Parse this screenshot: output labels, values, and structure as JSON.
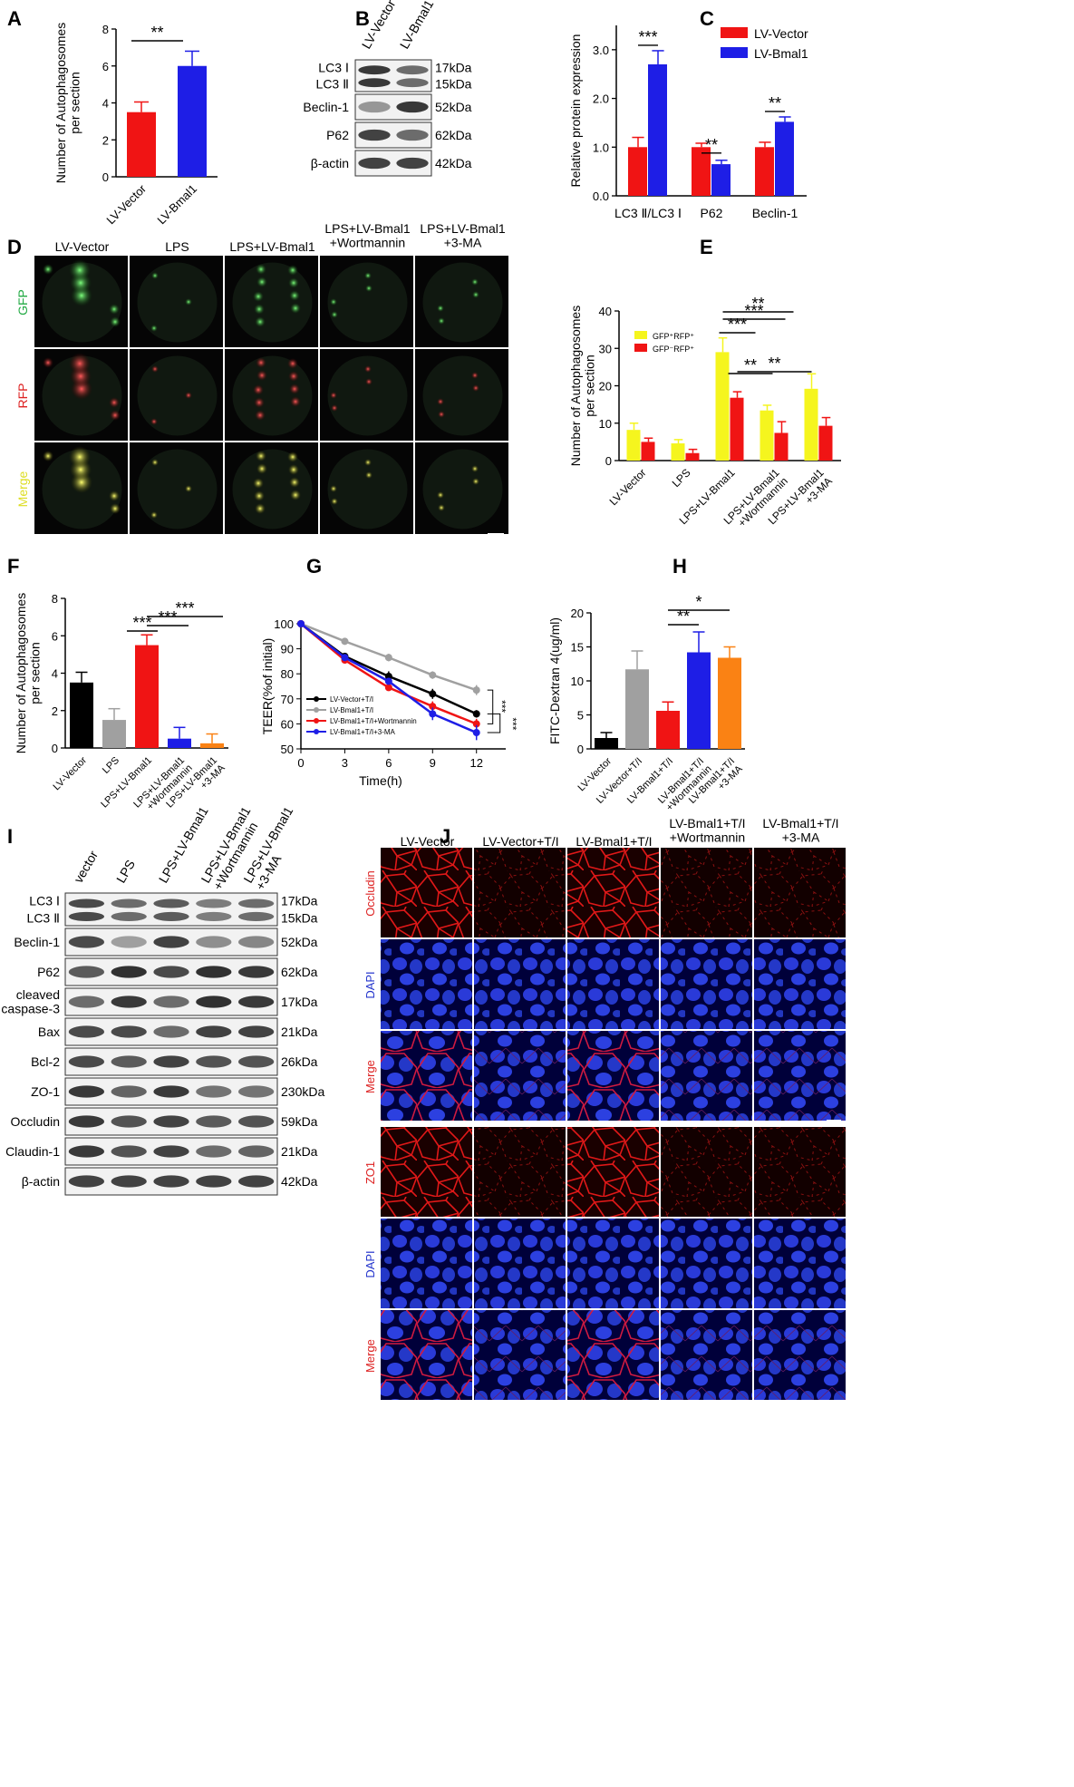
{
  "panel_letters": [
    "A",
    "B",
    "C",
    "D",
    "E",
    "F",
    "G",
    "H",
    "I",
    "J"
  ],
  "colors": {
    "red": "#f01414",
    "blue": "#1e1ee6",
    "yellow": "#f5f51e",
    "gray": "#a0a0a0",
    "black": "#000000",
    "orange": "#fa8214"
  },
  "chart_data": [
    {
      "panel": "A",
      "type": "bar",
      "ylabel": "Number of Autophagosomes\nper section",
      "categories": [
        "LV-Vector",
        "LV-Bmal1"
      ],
      "values": [
        3.5,
        6.0
      ],
      "errors": [
        0.55,
        0.8
      ],
      "ylim": [
        0,
        8
      ],
      "yticks": [
        "0",
        "2",
        "4",
        "6",
        "8"
      ],
      "sig": [
        "**"
      ],
      "colors": [
        "#f01414",
        "#1e1ee6"
      ]
    },
    {
      "panel": "C",
      "type": "bar",
      "ylabel": "Relative protein expression",
      "categories": [
        "LC3 Ⅱ/LC3 Ⅰ",
        "P62",
        "Beclin-1"
      ],
      "series": [
        {
          "name": "LV-Vector",
          "values": [
            1.0,
            1.0,
            1.0
          ],
          "errors": [
            0.2,
            0.08,
            0.1
          ]
        },
        {
          "name": "LV-Bmal1",
          "values": [
            2.7,
            0.65,
            1.52
          ],
          "errors": [
            0.28,
            0.08,
            0.1
          ]
        }
      ],
      "ylim": [
        0,
        3.5
      ],
      "yticks": [
        "0.0",
        "1.0",
        "2.0",
        "3.0"
      ],
      "sig": [
        "***",
        "**",
        "**"
      ],
      "legend": "top-right"
    },
    {
      "panel": "E",
      "type": "bar",
      "ylabel": "Number of Autophagosomes\nper section",
      "categories": [
        "LV-Vector",
        "LPS",
        "LPS+LV-Bmal1",
        "LPS+LV-Bmal1\n+Wortmannin",
        "LPS+LV-Bmal1\n+3-MA"
      ],
      "series": [
        {
          "name": "GFP⁺RFP⁺",
          "values": [
            8.2,
            4.6,
            29.0,
            13.4,
            19.2
          ],
          "errors": [
            1.8,
            1.0,
            3.8,
            1.4,
            4.0
          ]
        },
        {
          "name": "GFP⁻RFP⁺",
          "values": [
            5.0,
            2.0,
            16.8,
            7.4,
            9.3
          ],
          "errors": [
            1.0,
            1.0,
            1.6,
            3.0,
            2.2
          ]
        }
      ],
      "ylim": [
        0,
        40
      ],
      "yticks": [
        "0",
        "10",
        "20",
        "30",
        "40"
      ],
      "sig": [
        "***",
        "***",
        "***",
        "**",
        "**",
        "**"
      ]
    },
    {
      "panel": "F",
      "type": "bar",
      "ylabel": "Number of Autophagosomes\nper section",
      "categories": [
        "LV-Vector",
        "LPS",
        "LPS+LV-Bmal1",
        "LPS+LV-Bmal1\n+Wortmannin",
        "LPS+LV-Bmal1\n+3-MA"
      ],
      "values": [
        3.5,
        1.5,
        5.5,
        0.5,
        0.25
      ],
      "errors": [
        0.55,
        0.6,
        0.55,
        0.6,
        0.5
      ],
      "ylim": [
        0,
        8
      ],
      "yticks": [
        "0",
        "2",
        "4",
        "6",
        "8"
      ],
      "sig": [
        "***",
        "***",
        "***"
      ]
    },
    {
      "panel": "H",
      "type": "line",
      "xlabel": "Time(h)",
      "ylabel": "TEER(%of initial)",
      "x": [
        0,
        3,
        6,
        9,
        12
      ],
      "series": [
        {
          "name": "LV-Vector+T/I",
          "values": [
            100,
            87,
            79,
            72,
            64
          ]
        },
        {
          "name": "LV-Bmal1+T/I",
          "values": [
            100,
            93,
            86.5,
            79.5,
            73.5
          ]
        },
        {
          "name": "LV-Bmal1+T/I+Wortmannin",
          "values": [
            100,
            85.5,
            74.5,
            67,
            60
          ]
        },
        {
          "name": "LV-Bmal1+T/I+3-MA",
          "values": [
            100,
            86.5,
            77,
            64,
            56.5
          ]
        }
      ],
      "xlim": [
        0,
        14
      ],
      "ylim": [
        50,
        100
      ],
      "xticks": [
        "0",
        "3",
        "6",
        "9",
        "12"
      ],
      "yticks": [
        "50",
        "60",
        "70",
        "80",
        "90",
        "100"
      ],
      "sig": [
        "***",
        "***"
      ]
    },
    {
      "panel": "I",
      "type": "bar",
      "ylabel": "FITC-Dextran 4(ug/ml)",
      "categories": [
        "LV-Vector",
        "LV-Vector+T/I",
        "LV-Bmal1+T/I",
        "LV-Bmal1+T/I\n+Wortmannin",
        "LV-Bmal1+T/I\n+3-MA"
      ],
      "values": [
        1.6,
        11.7,
        5.6,
        14.2,
        13.4
      ],
      "errors": [
        0.8,
        2.7,
        1.3,
        3.0,
        1.6
      ],
      "ylim": [
        0,
        20
      ],
      "yticks": [
        "0",
        "5",
        "10",
        "15",
        "20"
      ],
      "sig": [
        "**",
        "*"
      ]
    }
  ],
  "blots": {
    "B": {
      "lanes": [
        "LV-Vector",
        "LV-Bmal1"
      ],
      "rows": [
        {
          "label": "LC3 Ⅰ",
          "label2": "LC3 Ⅱ",
          "kda": "17kDa",
          "kda2": "15kDa"
        },
        {
          "label": "Beclin-1",
          "kda": "52kDa"
        },
        {
          "label": "P62",
          "kda": "62kDa"
        },
        {
          "label": "β-actin",
          "kda": "42kDa"
        }
      ]
    },
    "G": {
      "lanes": [
        "vector",
        "LPS",
        "LPS+LV-Bmal1",
        "LPS+LV-Bmal1\n+Wortmannin",
        "LPS+LV-Bmal1\n+3-MA"
      ],
      "rows": [
        {
          "label": "LC3 Ⅰ",
          "label2": "LC3 Ⅱ",
          "kda": "17kDa",
          "kda2": "15kDa"
        },
        {
          "label": "Beclin-1",
          "kda": "52kDa"
        },
        {
          "label": "P62",
          "kda": "62kDa"
        },
        {
          "label": "cleaved\ncaspase-3",
          "kda": "17kDa"
        },
        {
          "label": "Bax",
          "kda": "21kDa"
        },
        {
          "label": "Bcl-2",
          "kda": "26kDa"
        },
        {
          "label": "ZO-1",
          "kda": "230kDa"
        },
        {
          "label": "Occludin",
          "kda": "59kDa"
        },
        {
          "label": "Claudin-1",
          "kda": "21kDa"
        },
        {
          "label": "β-actin",
          "kda": "42kDa"
        }
      ]
    }
  },
  "microscopy": {
    "D": {
      "columns": [
        "LV-Vector",
        "LPS",
        "LPS+LV-Bmal1",
        "LPS+LV-Bmal1\n+Wortmannin",
        "LPS+LV-Bmal1\n+3-MA"
      ],
      "rows": [
        "GFP",
        "RFP",
        "Merge"
      ]
    },
    "J": {
      "columns": [
        "LV-Vector",
        "LV-Vector+T/I",
        "LV-Bmal1+T/I",
        "LV-Bmal1+T/I\n+Wortmannin",
        "LV-Bmal1+T/I\n+3-MA"
      ],
      "rows1": [
        "Occludin",
        "DAPI",
        "Merge"
      ],
      "rows2": [
        "ZO1",
        "DAPI",
        "Merge"
      ]
    }
  }
}
